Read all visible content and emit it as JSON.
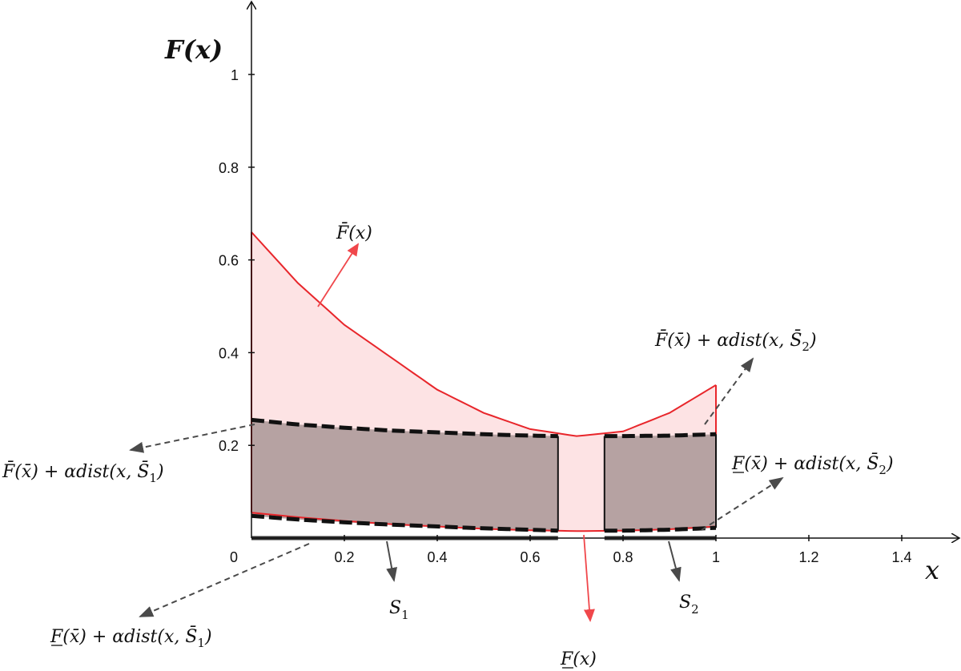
{
  "chart_data": {
    "type": "area",
    "xlabel": "x",
    "ylabel": "F(x)",
    "xlim": [
      0,
      1.5
    ],
    "ylim": [
      0,
      1.1
    ],
    "x_ticks": [
      "0",
      "0.2",
      "0.4",
      "0.6",
      "0.8",
      "1",
      "1.2",
      "1.4"
    ],
    "y_ticks": [
      "0.2",
      "0.4",
      "0.6",
      "0.8",
      "1"
    ],
    "grid": false,
    "colors": {
      "upper": "#e8262b",
      "upper_fill": "#fde3e4",
      "band_fill": "#b6a2a2",
      "dashed": "#111111",
      "label_arrow": "#555555",
      "set_bar": "#333333"
    },
    "series": [
      {
        "name": "F̄(x)",
        "x": [
          0,
          0.1,
          0.2,
          0.3,
          0.4,
          0.5,
          0.6,
          0.7,
          0.8,
          0.9,
          1.0
        ],
        "y": [
          0.66,
          0.55,
          0.46,
          0.39,
          0.32,
          0.27,
          0.235,
          0.22,
          0.23,
          0.27,
          0.33
        ]
      },
      {
        "name": "F(x)",
        "x": [
          0,
          0.1,
          0.2,
          0.3,
          0.4,
          0.5,
          0.6,
          0.7,
          0.8,
          0.9,
          1.0
        ],
        "y": [
          0.055,
          0.045,
          0.037,
          0.03,
          0.025,
          0.02,
          0.017,
          0.015,
          0.016,
          0.019,
          0.025
        ]
      },
      {
        "name": "F̄(x̄)+αdist(x,S̄)",
        "x": [
          0,
          0.1,
          0.2,
          0.3,
          0.4,
          0.5,
          0.6,
          0.66,
          0.76,
          0.8,
          0.9,
          1.0
        ],
        "y": [
          0.255,
          0.245,
          0.238,
          0.232,
          0.228,
          0.224,
          0.221,
          0.22,
          0.22,
          0.22,
          0.221,
          0.224
        ]
      },
      {
        "name": "F(x̄)+αdist(x,S̄)",
        "x": [
          0,
          0.1,
          0.2,
          0.3,
          0.4,
          0.5,
          0.6,
          0.66,
          0.76,
          0.8,
          0.9,
          1.0
        ],
        "y": [
          0.048,
          0.04,
          0.034,
          0.029,
          0.025,
          0.021,
          0.018,
          0.016,
          0.016,
          0.016,
          0.018,
          0.022
        ]
      }
    ],
    "sets": [
      {
        "name": "S1",
        "range": [
          0,
          0.66
        ]
      },
      {
        "name": "S2",
        "range": [
          0.76,
          1.0
        ]
      }
    ],
    "annotations": {
      "upper_label": "F̄(x)",
      "lower_label": "F(x)",
      "s1_label": "S",
      "s1_sub": "1",
      "s2_label": "S",
      "s2_sub": "2",
      "up_s1_label": "F̄(x̄) + αdist(x, S̄",
      "up_s1_sub": "1",
      "up_s1_close": ")",
      "up_s2_label": "F̄(x̄) + αdist(x, S̄",
      "up_s2_sub": "2",
      "up_s2_close": ")",
      "low_s1_label": "F(x̄) + αdist(x, S̄",
      "low_s1_sub": "1",
      "low_s1_close": ")",
      "low_s2_label": "F(x̄) + αdist(x, S̄",
      "low_s2_sub": "2",
      "low_s2_close": ")"
    }
  }
}
